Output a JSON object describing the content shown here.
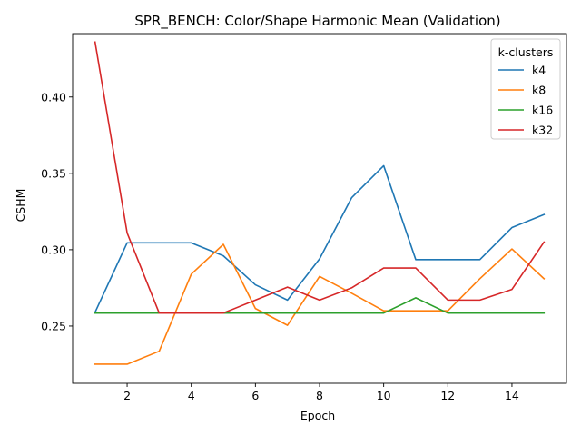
{
  "chart_data": {
    "type": "line",
    "title": "SPR_BENCH: Color/Shape Harmonic Mean (Validation)",
    "xlabel": "Epoch",
    "ylabel": "CSHM",
    "xlim": [
      0.3,
      15.7
    ],
    "ylim": [
      0.2125,
      0.4415
    ],
    "xticks": [
      2,
      4,
      6,
      8,
      10,
      12,
      14
    ],
    "yticks": [
      0.25,
      0.3,
      0.35,
      0.4
    ],
    "ytick_labels": [
      "0.25",
      "0.30",
      "0.35",
      "0.40"
    ],
    "grid": false,
    "legend": {
      "title": "k-clusters",
      "placement": "top-right"
    },
    "x": [
      1,
      2,
      3,
      4,
      5,
      6,
      7,
      8,
      9,
      10,
      11,
      12,
      13,
      14,
      15
    ],
    "series": [
      {
        "name": "k4",
        "color": "#1f77b4",
        "values": [
          0.259,
          0.3045,
          0.3045,
          0.3045,
          0.296,
          0.277,
          0.267,
          0.294,
          0.334,
          0.355,
          0.2935,
          0.2935,
          0.2935,
          0.3145,
          0.323
        ]
      },
      {
        "name": "k8",
        "color": "#ff7f0e",
        "values": [
          0.225,
          0.225,
          0.2335,
          0.284,
          0.3035,
          0.2615,
          0.2505,
          0.2825,
          0.2715,
          0.26,
          0.26,
          0.26,
          0.281,
          0.3005,
          0.281
        ]
      },
      {
        "name": "k16",
        "color": "#2ca02c",
        "values": [
          0.2585,
          0.2585,
          0.2585,
          0.2585,
          0.2585,
          0.2585,
          0.2585,
          0.2585,
          0.2585,
          0.2585,
          0.2685,
          0.2585,
          0.2585,
          0.2585,
          0.2585
        ]
      },
      {
        "name": "k32",
        "color": "#d62728",
        "values": [
          0.436,
          0.311,
          0.2585,
          0.2585,
          0.2585,
          0.267,
          0.2755,
          0.267,
          0.275,
          0.288,
          0.288,
          0.267,
          0.267,
          0.274,
          0.305
        ]
      }
    ]
  }
}
